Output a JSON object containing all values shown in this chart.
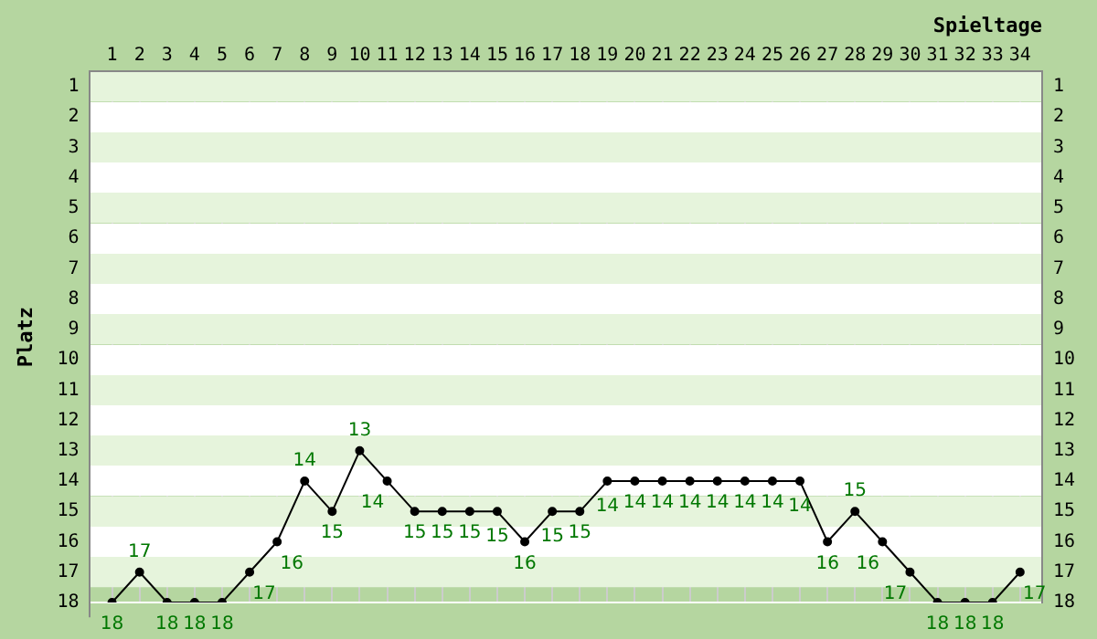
{
  "chart_data": {
    "type": "line",
    "xlabel": "Spieltage",
    "ylabel": "Platz",
    "x": [
      1,
      2,
      3,
      4,
      5,
      6,
      7,
      8,
      9,
      10,
      11,
      12,
      13,
      14,
      15,
      16,
      17,
      18,
      19,
      20,
      21,
      22,
      23,
      24,
      25,
      26,
      27,
      28,
      29,
      30,
      31,
      32,
      33,
      34
    ],
    "series": [
      {
        "color": "#000000",
        "values": [
          18,
          17,
          18,
          18,
          18,
          17,
          16,
          14,
          15,
          13,
          14,
          15,
          15,
          15,
          15,
          16,
          15,
          15,
          14,
          14,
          14,
          14,
          14,
          14,
          14,
          14,
          16,
          15,
          16,
          17,
          18,
          18,
          18,
          17
        ]
      }
    ],
    "xlim": [
      0.2,
      34.8
    ],
    "xticks": [
      1,
      2,
      3,
      4,
      5,
      6,
      7,
      8,
      9,
      10,
      11,
      12,
      13,
      14,
      15,
      16,
      17,
      18,
      19,
      20,
      21,
      22,
      23,
      24,
      25,
      26,
      27,
      28,
      29,
      30,
      31,
      32,
      33,
      34
    ],
    "ylim": [
      18,
      0.5
    ],
    "yticks": [
      1,
      2,
      3,
      4,
      5,
      6,
      7,
      8,
      9,
      10,
      11,
      12,
      13,
      14,
      15,
      16,
      17,
      18
    ],
    "y2lim": [
      18,
      0.5
    ],
    "y2ticks": [
      1,
      2,
      3,
      4,
      5,
      6,
      7,
      8,
      9,
      10,
      11,
      12,
      13,
      14,
      15,
      16,
      17,
      18
    ],
    "grid": true,
    "legend": false,
    "marker": "circle",
    "line_style": "solid",
    "data_labels": true
  }
}
